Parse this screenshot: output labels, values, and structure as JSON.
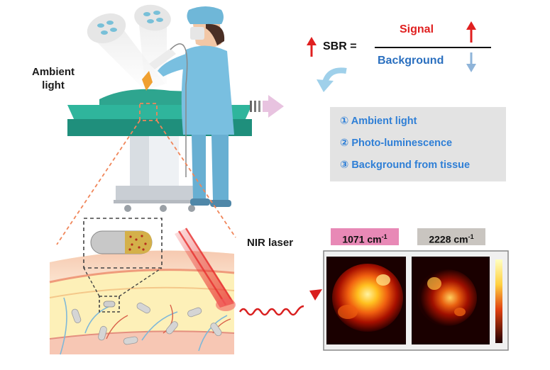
{
  "labels": {
    "ambient_line1": "Ambient",
    "ambient_line2": "light",
    "nir_laser": "NIR laser"
  },
  "formula": {
    "lhs": "SBR =",
    "numerator": "Signal",
    "denominator": "Background"
  },
  "factors": [
    {
      "marker": "①",
      "text": "Ambient light"
    },
    {
      "marker": "②",
      "text": "Photo-luminescence"
    },
    {
      "marker": "③",
      "text": "Background from tissue"
    }
  ],
  "images": {
    "tag1": "1071 cm",
    "tag1_sup": "-1",
    "tag2": "2228 cm",
    "tag2_sup": "-1"
  },
  "colors": {
    "up_arrow": "#e02020",
    "down_arrow": "#8fb4d9",
    "text_blue": "#2f7fd6",
    "tag1_bg": "#e889b6",
    "tag2_bg": "#c9c5c0",
    "infobox_bg": "#e3e3e3"
  }
}
